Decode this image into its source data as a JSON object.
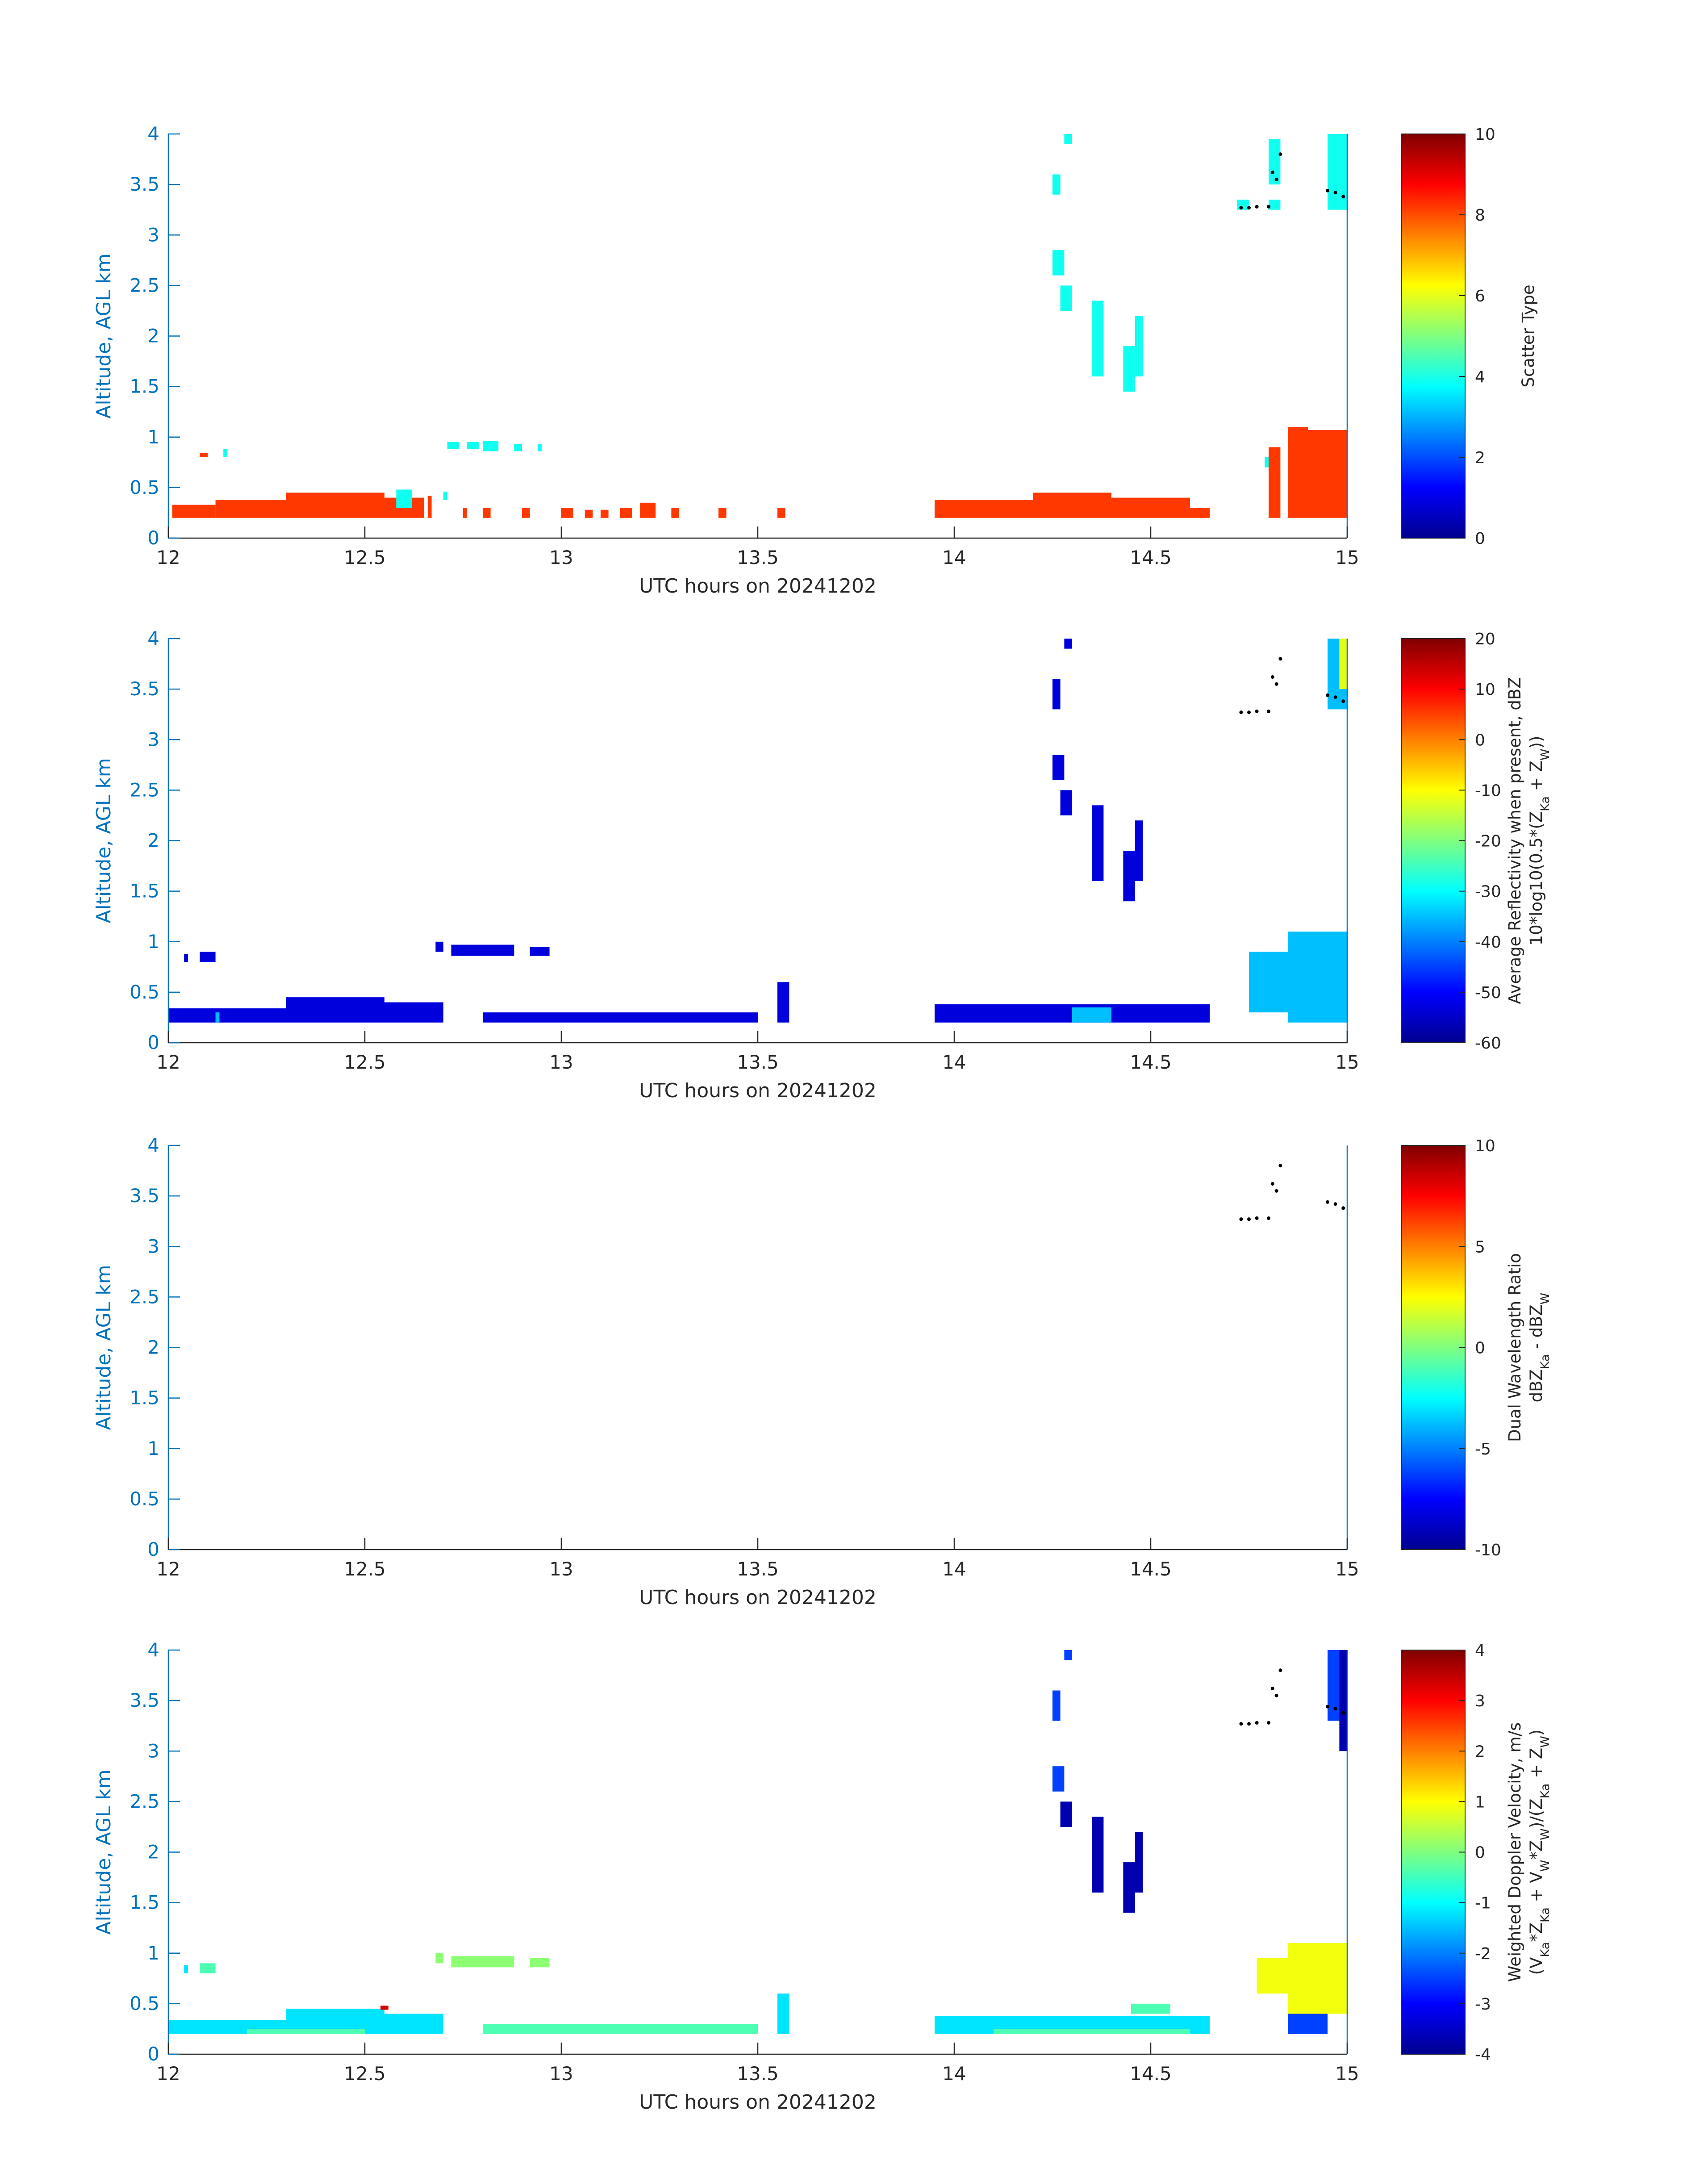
{
  "colors": {
    "axis_y": "#0072BD",
    "axis_x": "#262626",
    "scatter_orange": "#FF4A14",
    "scatter_cyan": "#2EF7D4",
    "marker": "#000000"
  },
  "chart_data": [
    {
      "id": "scatter-type",
      "type": "heatmap",
      "xlabel": "UTC hours on 20241202",
      "ylabel": "Altitude, AGL km",
      "xlim": [
        12,
        15
      ],
      "ylim": [
        0,
        4
      ],
      "xticks": [
        "12",
        "12.5",
        "13",
        "13.5",
        "14",
        "14.5",
        "15"
      ],
      "yticks": [
        "0",
        "0.5",
        "1",
        "1.5",
        "2",
        "2.5",
        "3",
        "3.5",
        "4"
      ],
      "colorbar": {
        "label_lines": [
          "Scatter Type"
        ],
        "range": [
          0,
          10
        ],
        "ticks": [
          "0",
          "2",
          "4",
          "6",
          "8",
          "10"
        ]
      },
      "features": [
        {
          "kind": "cells",
          "value": 8.2,
          "points": [
            [
              12.01,
              0.2,
              12.12,
              0.33
            ],
            [
              12.12,
              0.2,
              12.3,
              0.38
            ],
            [
              12.3,
              0.2,
              12.55,
              0.45
            ],
            [
              12.55,
              0.2,
              12.65,
              0.4
            ],
            [
              12.66,
              0.2,
              12.67,
              0.42
            ],
            [
              12.08,
              0.8,
              12.1,
              0.84
            ],
            [
              12.75,
              0.2,
              12.76,
              0.3
            ],
            [
              12.8,
              0.2,
              12.82,
              0.3
            ],
            [
              12.9,
              0.2,
              12.92,
              0.3
            ],
            [
              13.0,
              0.2,
              13.03,
              0.3
            ],
            [
              13.06,
              0.2,
              13.08,
              0.28
            ],
            [
              13.1,
              0.2,
              13.12,
              0.28
            ],
            [
              13.15,
              0.2,
              13.18,
              0.3
            ],
            [
              13.2,
              0.2,
              13.24,
              0.35
            ],
            [
              13.28,
              0.2,
              13.3,
              0.3
            ],
            [
              13.4,
              0.2,
              13.42,
              0.3
            ],
            [
              13.55,
              0.2,
              13.57,
              0.3
            ],
            [
              13.95,
              0.2,
              14.2,
              0.38
            ],
            [
              14.2,
              0.2,
              14.4,
              0.45
            ],
            [
              14.4,
              0.2,
              14.6,
              0.4
            ],
            [
              14.6,
              0.2,
              14.65,
              0.3
            ],
            [
              14.8,
              0.2,
              14.83,
              0.9
            ],
            [
              14.85,
              0.2,
              14.9,
              1.1
            ],
            [
              14.9,
              0.2,
              15.0,
              1.07
            ]
          ]
        },
        {
          "kind": "cells",
          "value": 3.9,
          "points": [
            [
              12.14,
              0.8,
              12.15,
              0.88
            ],
            [
              12.58,
              0.3,
              12.62,
              0.48
            ],
            [
              12.7,
              0.38,
              12.71,
              0.46
            ],
            [
              12.71,
              0.88,
              12.74,
              0.95
            ],
            [
              12.76,
              0.88,
              12.79,
              0.95
            ],
            [
              12.8,
              0.86,
              12.84,
              0.96
            ],
            [
              12.88,
              0.86,
              12.9,
              0.93
            ],
            [
              12.94,
              0.86,
              12.95,
              0.93
            ],
            [
              14.25,
              3.4,
              14.27,
              3.6
            ],
            [
              14.28,
              3.9,
              14.3,
              4.0
            ],
            [
              14.25,
              2.6,
              14.28,
              2.85
            ],
            [
              14.27,
              2.25,
              14.3,
              2.5
            ],
            [
              14.35,
              1.6,
              14.38,
              2.35
            ],
            [
              14.43,
              1.45,
              14.46,
              1.9
            ],
            [
              14.46,
              1.6,
              14.48,
              2.2
            ],
            [
              14.72,
              3.25,
              14.75,
              3.35
            ],
            [
              14.8,
              3.25,
              14.83,
              3.35
            ],
            [
              14.8,
              3.5,
              14.83,
              3.95
            ],
            [
              14.95,
              3.25,
              15.0,
              4.0
            ],
            [
              14.79,
              0.7,
              14.8,
              0.8
            ]
          ]
        }
      ]
    },
    {
      "id": "reflectivity",
      "type": "heatmap",
      "xlabel": "UTC hours on 20241202",
      "ylabel": "Altitude, AGL km",
      "xlim": [
        12,
        15
      ],
      "ylim": [
        0,
        4
      ],
      "xticks": [
        "12",
        "12.5",
        "13",
        "13.5",
        "14",
        "14.5",
        "15"
      ],
      "yticks": [
        "0",
        "0.5",
        "1",
        "1.5",
        "2",
        "2.5",
        "3",
        "3.5",
        "4"
      ],
      "colorbar": {
        "label_lines": [
          "Average Reflectivity when present, dBZ",
          "10*log10(0.5*(Z<sub>Ka</sub> + Z<sub>W</sub>))"
        ],
        "range": [
          -60,
          20
        ],
        "ticks": [
          "-60",
          "-50",
          "-40",
          "-30",
          "-20",
          "-10",
          "0",
          "10",
          "20"
        ]
      },
      "features": [
        {
          "kind": "cells",
          "value": -53,
          "points": [
            [
              12.0,
              0.2,
              12.3,
              0.34
            ],
            [
              12.3,
              0.2,
              12.55,
              0.45
            ],
            [
              12.55,
              0.2,
              12.7,
              0.4
            ],
            [
              12.04,
              0.8,
              12.05,
              0.88
            ],
            [
              12.08,
              0.8,
              12.12,
              0.9
            ],
            [
              12.68,
              0.9,
              12.7,
              1.0
            ],
            [
              12.72,
              0.86,
              12.88,
              0.97
            ],
            [
              12.92,
              0.86,
              12.97,
              0.95
            ],
            [
              12.8,
              0.2,
              13.5,
              0.3
            ],
            [
              13.55,
              0.2,
              13.58,
              0.6
            ],
            [
              13.95,
              0.2,
              14.65,
              0.38
            ],
            [
              14.25,
              3.3,
              14.27,
              3.6
            ],
            [
              14.28,
              3.9,
              14.3,
              4.0
            ],
            [
              14.25,
              2.6,
              14.28,
              2.85
            ],
            [
              14.27,
              2.25,
              14.3,
              2.5
            ],
            [
              14.35,
              1.6,
              14.38,
              2.35
            ],
            [
              14.43,
              1.4,
              14.46,
              1.9
            ],
            [
              14.46,
              1.6,
              14.48,
              2.2
            ]
          ]
        },
        {
          "kind": "cells",
          "value": -35,
          "points": [
            [
              14.85,
              0.2,
              15.0,
              1.1
            ],
            [
              14.75,
              0.3,
              14.85,
              0.9
            ],
            [
              14.95,
              3.3,
              15.0,
              4.0
            ],
            [
              12.12,
              0.2,
              12.13,
              0.3
            ],
            [
              14.3,
              0.2,
              14.4,
              0.35
            ]
          ]
        },
        {
          "kind": "cells",
          "value": -12,
          "points": [
            [
              14.98,
              3.5,
              15.0,
              4.0
            ]
          ]
        }
      ]
    },
    {
      "id": "dual-wavelength-ratio",
      "type": "heatmap",
      "xlabel": "UTC hours on 20241202",
      "ylabel": "Altitude, AGL km",
      "xlim": [
        12,
        15
      ],
      "ylim": [
        0,
        4
      ],
      "xticks": [
        "12",
        "12.5",
        "13",
        "13.5",
        "14",
        "14.5",
        "15"
      ],
      "yticks": [
        "0",
        "0.5",
        "1",
        "1.5",
        "2",
        "2.5",
        "3",
        "3.5",
        "4"
      ],
      "colorbar": {
        "label_lines": [
          "Dual Wavelength Ratio",
          "dBZ<sub>Ka</sub> - dBZ<sub>W</sub>"
        ],
        "range": [
          -10,
          10
        ],
        "ticks": [
          "-10",
          "-5",
          "0",
          "5",
          "10"
        ]
      },
      "features": []
    },
    {
      "id": "doppler-velocity",
      "type": "heatmap",
      "xlabel": "UTC hours on 20241202",
      "ylabel": "Altitude, AGL km",
      "xlim": [
        12,
        15
      ],
      "ylim": [
        0,
        4
      ],
      "xticks": [
        "12",
        "12.5",
        "13",
        "13.5",
        "14",
        "14.5",
        "15"
      ],
      "yticks": [
        "0",
        "0.5",
        "1",
        "1.5",
        "2",
        "2.5",
        "3",
        "3.5",
        "4"
      ],
      "colorbar": {
        "label_lines": [
          "Weighted Doppler Velocity, m/s",
          "(V<sub>Ka</sub>*Z<sub>Ka</sub> + V<sub>W</sub>*Z<sub>W</sub>)/(Z<sub>Ka</sub> + Z<sub>W</sub>)"
        ],
        "range": [
          -4,
          4
        ],
        "ticks": [
          "-4",
          "-3",
          "-2",
          "-1",
          "0",
          "1",
          "2",
          "3",
          "4"
        ]
      },
      "features": [
        {
          "kind": "cells",
          "value": -1.2,
          "points": [
            [
              12.0,
              0.2,
              12.3,
              0.34
            ],
            [
              12.3,
              0.2,
              12.55,
              0.45
            ],
            [
              12.55,
              0.2,
              12.7,
              0.4
            ],
            [
              13.95,
              0.2,
              14.65,
              0.38
            ],
            [
              13.55,
              0.2,
              13.58,
              0.6
            ],
            [
              12.04,
              0.8,
              12.05,
              0.88
            ]
          ]
        },
        {
          "kind": "cells",
          "value": -0.4,
          "points": [
            [
              12.08,
              0.8,
              12.12,
              0.9
            ],
            [
              12.8,
              0.2,
              13.5,
              0.3
            ],
            [
              12.2,
              0.2,
              12.5,
              0.25
            ],
            [
              14.1,
              0.2,
              14.6,
              0.25
            ],
            [
              14.45,
              0.4,
              14.55,
              0.5
            ]
          ]
        },
        {
          "kind": "cells",
          "value": 0.1,
          "points": [
            [
              12.68,
              0.9,
              12.7,
              1.0
            ],
            [
              12.72,
              0.86,
              12.88,
              0.97
            ],
            [
              12.92,
              0.86,
              12.97,
              0.95
            ]
          ]
        },
        {
          "kind": "cells",
          "value": 3.3,
          "points": [
            [
              12.54,
              0.44,
              12.56,
              0.48
            ],
            [
              14.82,
              0.8,
              14.84,
              0.88
            ]
          ]
        },
        {
          "kind": "cells",
          "value": 0.9,
          "points": [
            [
              14.77,
              0.6,
              14.85,
              0.95
            ],
            [
              14.85,
              0.4,
              15.0,
              1.1
            ]
          ]
        },
        {
          "kind": "cells",
          "value": -2.5,
          "points": [
            [
              14.25,
              3.3,
              14.27,
              3.6
            ],
            [
              14.28,
              3.9,
              14.3,
              4.0
            ],
            [
              14.25,
              2.6,
              14.28,
              2.85
            ],
            [
              14.85,
              0.2,
              14.95,
              0.4
            ],
            [
              14.95,
              3.3,
              15.0,
              4.0
            ]
          ]
        },
        {
          "kind": "cells",
          "value": -3.7,
          "points": [
            [
              14.27,
              2.25,
              14.3,
              2.5
            ],
            [
              14.35,
              1.6,
              14.38,
              2.35
            ],
            [
              14.43,
              1.4,
              14.46,
              1.9
            ],
            [
              14.46,
              1.6,
              14.48,
              2.2
            ],
            [
              14.98,
              3.0,
              15.0,
              4.0
            ]
          ]
        }
      ]
    }
  ],
  "markers": [
    [
      14.73,
      3.27
    ],
    [
      14.75,
      3.27
    ],
    [
      14.77,
      3.28
    ],
    [
      14.8,
      3.28
    ],
    [
      14.81,
      3.62
    ],
    [
      14.82,
      3.55
    ],
    [
      14.83,
      3.8
    ],
    [
      14.95,
      3.44
    ],
    [
      14.97,
      3.42
    ],
    [
      14.99,
      3.38
    ]
  ]
}
